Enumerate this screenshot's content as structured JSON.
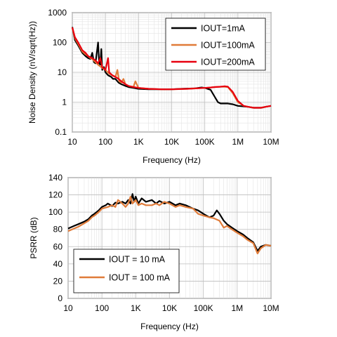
{
  "chart_data": [
    {
      "type": "line",
      "xlabel": "Frequency (Hz)",
      "ylabel": "Noise Density (nV/sqrt(Hz))",
      "xscale": "log",
      "yscale": "log",
      "xlim": [
        10,
        10000000
      ],
      "ylim": [
        0.1,
        1000
      ],
      "x_ticks": [
        10,
        100,
        1000,
        10000,
        100000,
        1000000,
        10000000
      ],
      "x_tick_labels": [
        "10",
        "100",
        "1K",
        "10K",
        "100K",
        "1M",
        "10M"
      ],
      "y_ticks": [
        0.1,
        1,
        10,
        100,
        1000
      ],
      "y_tick_labels": [
        "0.1",
        "1",
        "10",
        "100",
        "1000"
      ],
      "grid": true,
      "legend_position": "top-right",
      "series": [
        {
          "name": "IOUT=1mA",
          "color": "#000000",
          "points": [
            [
              10,
              330
            ],
            [
              12,
              120
            ],
            [
              15,
              80
            ],
            [
              20,
              45
            ],
            [
              25,
              35
            ],
            [
              30,
              30
            ],
            [
              35,
              28
            ],
            [
              40,
              45
            ],
            [
              45,
              22
            ],
            [
              50,
              20
            ],
            [
              60,
              100
            ],
            [
              65,
              20
            ],
            [
              70,
              18
            ],
            [
              75,
              60
            ],
            [
              80,
              12
            ],
            [
              90,
              15
            ],
            [
              100,
              10
            ],
            [
              120,
              8
            ],
            [
              150,
              7
            ],
            [
              170,
              6
            ],
            [
              200,
              6
            ],
            [
              250,
              4.5
            ],
            [
              300,
              4
            ],
            [
              400,
              3.5
            ],
            [
              500,
              3.2
            ],
            [
              700,
              3
            ],
            [
              1000,
              2.8
            ],
            [
              2000,
              2.7
            ],
            [
              5000,
              2.7
            ],
            [
              10000,
              2.7
            ],
            [
              20000,
              2.8
            ],
            [
              50000,
              2.9
            ],
            [
              80000,
              3.1
            ],
            [
              100000,
              3.0
            ],
            [
              150000,
              2.6
            ],
            [
              200000,
              1.5
            ],
            [
              250000,
              1.0
            ],
            [
              300000,
              0.9
            ],
            [
              500000,
              0.9
            ],
            [
              700000,
              0.85
            ],
            [
              1000000,
              0.75
            ],
            [
              2000000,
              0.7
            ],
            [
              3000000,
              0.65
            ],
            [
              5000000,
              0.65
            ],
            [
              7000000,
              0.7
            ],
            [
              10000000,
              0.75
            ]
          ]
        },
        {
          "name": "IOUT=100mA",
          "color": "#E07B39",
          "points": [
            [
              10,
              300
            ],
            [
              12,
              140
            ],
            [
              15,
              90
            ],
            [
              20,
              50
            ],
            [
              25,
              40
            ],
            [
              30,
              35
            ],
            [
              35,
              30
            ],
            [
              40,
              28
            ],
            [
              50,
              22
            ],
            [
              60,
              18
            ],
            [
              80,
              14
            ],
            [
              100,
              12
            ],
            [
              130,
              9
            ],
            [
              160,
              8
            ],
            [
              200,
              7
            ],
            [
              230,
              12
            ],
            [
              260,
              5
            ],
            [
              300,
              4.5
            ],
            [
              350,
              6
            ],
            [
              400,
              4
            ],
            [
              500,
              3.5
            ],
            [
              700,
              3.2
            ],
            [
              800,
              5
            ],
            [
              1000,
              3
            ],
            [
              2000,
              2.8
            ],
            [
              5000,
              2.7
            ],
            [
              10000,
              2.7
            ],
            [
              30000,
              2.8
            ],
            [
              100000,
              3.0
            ],
            [
              150000,
              3.1
            ],
            [
              200000,
              3.2
            ],
            [
              300000,
              3.3
            ],
            [
              400000,
              3.3
            ],
            [
              500000,
              3.2
            ],
            [
              700000,
              2.0
            ],
            [
              1000000,
              1.0
            ],
            [
              1500000,
              0.75
            ],
            [
              2000000,
              0.7
            ],
            [
              3000000,
              0.65
            ],
            [
              5000000,
              0.65
            ],
            [
              7000000,
              0.7
            ],
            [
              10000000,
              0.75
            ]
          ]
        },
        {
          "name": "IOUT=200mA",
          "color": "#E8000F",
          "points": [
            [
              10,
              320
            ],
            [
              12,
              150
            ],
            [
              15,
              100
            ],
            [
              20,
              55
            ],
            [
              25,
              45
            ],
            [
              30,
              35
            ],
            [
              35,
              32
            ],
            [
              40,
              30
            ],
            [
              50,
              25
            ],
            [
              60,
              20
            ],
            [
              70,
              30
            ],
            [
              80,
              15
            ],
            [
              100,
              12
            ],
            [
              120,
              30
            ],
            [
              130,
              10
            ],
            [
              160,
              8
            ],
            [
              200,
              7
            ],
            [
              250,
              6
            ],
            [
              300,
              5
            ],
            [
              400,
              4
            ],
            [
              500,
              3.5
            ],
            [
              700,
              3.2
            ],
            [
              1000,
              3
            ],
            [
              2000,
              2.8
            ],
            [
              5000,
              2.7
            ],
            [
              10000,
              2.7
            ],
            [
              30000,
              2.8
            ],
            [
              100000,
              3.0
            ],
            [
              150000,
              3.1
            ],
            [
              200000,
              3.2
            ],
            [
              300000,
              3.3
            ],
            [
              400000,
              3.4
            ],
            [
              500000,
              3.3
            ],
            [
              700000,
              2.2
            ],
            [
              1000000,
              1.1
            ],
            [
              1500000,
              0.75
            ],
            [
              2000000,
              0.7
            ],
            [
              3000000,
              0.65
            ],
            [
              5000000,
              0.65
            ],
            [
              7000000,
              0.7
            ],
            [
              10000000,
              0.75
            ]
          ]
        }
      ]
    },
    {
      "type": "line",
      "xlabel": "Frequency (Hz)",
      "ylabel": "PSRR (dB)",
      "xscale": "log",
      "yscale": "linear",
      "xlim": [
        10,
        10000000
      ],
      "ylim": [
        0,
        140
      ],
      "x_ticks": [
        10,
        100,
        1000,
        10000,
        100000,
        1000000,
        10000000
      ],
      "x_tick_labels": [
        "10",
        "100",
        "1K",
        "10K",
        "100K",
        "1M",
        "10M"
      ],
      "y_ticks": [
        0,
        20,
        40,
        60,
        80,
        100,
        120,
        140
      ],
      "y_tick_labels": [
        "0",
        "20",
        "40",
        "60",
        "80",
        "100",
        "120",
        "140"
      ],
      "grid": true,
      "legend_position": "bottom-left",
      "series": [
        {
          "name": "IOUT = 10 mA",
          "color": "#000000",
          "points": [
            [
              10,
              81
            ],
            [
              15,
              84
            ],
            [
              20,
              86
            ],
            [
              30,
              89
            ],
            [
              40,
              92
            ],
            [
              50,
              96
            ],
            [
              60,
              98
            ],
            [
              80,
              102
            ],
            [
              100,
              106
            ],
            [
              130,
              108
            ],
            [
              150,
              110
            ],
            [
              200,
              107
            ],
            [
              250,
              111
            ],
            [
              300,
              110
            ],
            [
              400,
              112
            ],
            [
              500,
              110
            ],
            [
              600,
              114
            ],
            [
              700,
              110
            ],
            [
              800,
              121
            ],
            [
              900,
              112
            ],
            [
              1000,
              118
            ],
            [
              1200,
              110
            ],
            [
              1500,
              116
            ],
            [
              2000,
              112
            ],
            [
              3000,
              114
            ],
            [
              4000,
              110
            ],
            [
              5000,
              113
            ],
            [
              7000,
              110
            ],
            [
              10000,
              112
            ],
            [
              15000,
              108
            ],
            [
              20000,
              110
            ],
            [
              30000,
              108
            ],
            [
              50000,
              104
            ],
            [
              70000,
              102
            ],
            [
              100000,
              98
            ],
            [
              150000,
              94
            ],
            [
              200000,
              96
            ],
            [
              250000,
              102
            ],
            [
              300000,
              98
            ],
            [
              400000,
              90
            ],
            [
              500000,
              86
            ],
            [
              700000,
              82
            ],
            [
              1000000,
              78
            ],
            [
              1500000,
              74
            ],
            [
              2000000,
              70
            ],
            [
              3000000,
              65
            ],
            [
              4000000,
              55
            ],
            [
              5000000,
              60
            ],
            [
              7000000,
              62
            ],
            [
              10000000,
              61
            ]
          ]
        },
        {
          "name": "IOUT = 100 mA",
          "color": "#E07B39",
          "points": [
            [
              10,
              78
            ],
            [
              15,
              81
            ],
            [
              20,
              83
            ],
            [
              30,
              87
            ],
            [
              40,
              90
            ],
            [
              50,
              94
            ],
            [
              60,
              96
            ],
            [
              80,
              100
            ],
            [
              100,
              104
            ],
            [
              150,
              106
            ],
            [
              200,
              108
            ],
            [
              250,
              106
            ],
            [
              300,
              114
            ],
            [
              400,
              110
            ],
            [
              500,
              106
            ],
            [
              600,
              110
            ],
            [
              700,
              118
            ],
            [
              800,
              110
            ],
            [
              1000,
              114
            ],
            [
              1200,
              108
            ],
            [
              1500,
              110
            ],
            [
              2000,
              108
            ],
            [
              3000,
              108
            ],
            [
              4000,
              110
            ],
            [
              5000,
              108
            ],
            [
              7000,
              112
            ],
            [
              10000,
              110
            ],
            [
              15000,
              106
            ],
            [
              20000,
              108
            ],
            [
              30000,
              106
            ],
            [
              50000,
              104
            ],
            [
              70000,
              98
            ],
            [
              100000,
              96
            ],
            [
              150000,
              94
            ],
            [
              200000,
              93
            ],
            [
              300000,
              90
            ],
            [
              400000,
              82
            ],
            [
              500000,
              84
            ],
            [
              700000,
              80
            ],
            [
              1000000,
              76
            ],
            [
              1500000,
              72
            ],
            [
              2000000,
              68
            ],
            [
              3000000,
              64
            ],
            [
              4000000,
              52
            ],
            [
              5000000,
              58
            ],
            [
              7000000,
              62
            ],
            [
              10000000,
              61
            ]
          ]
        }
      ]
    }
  ]
}
